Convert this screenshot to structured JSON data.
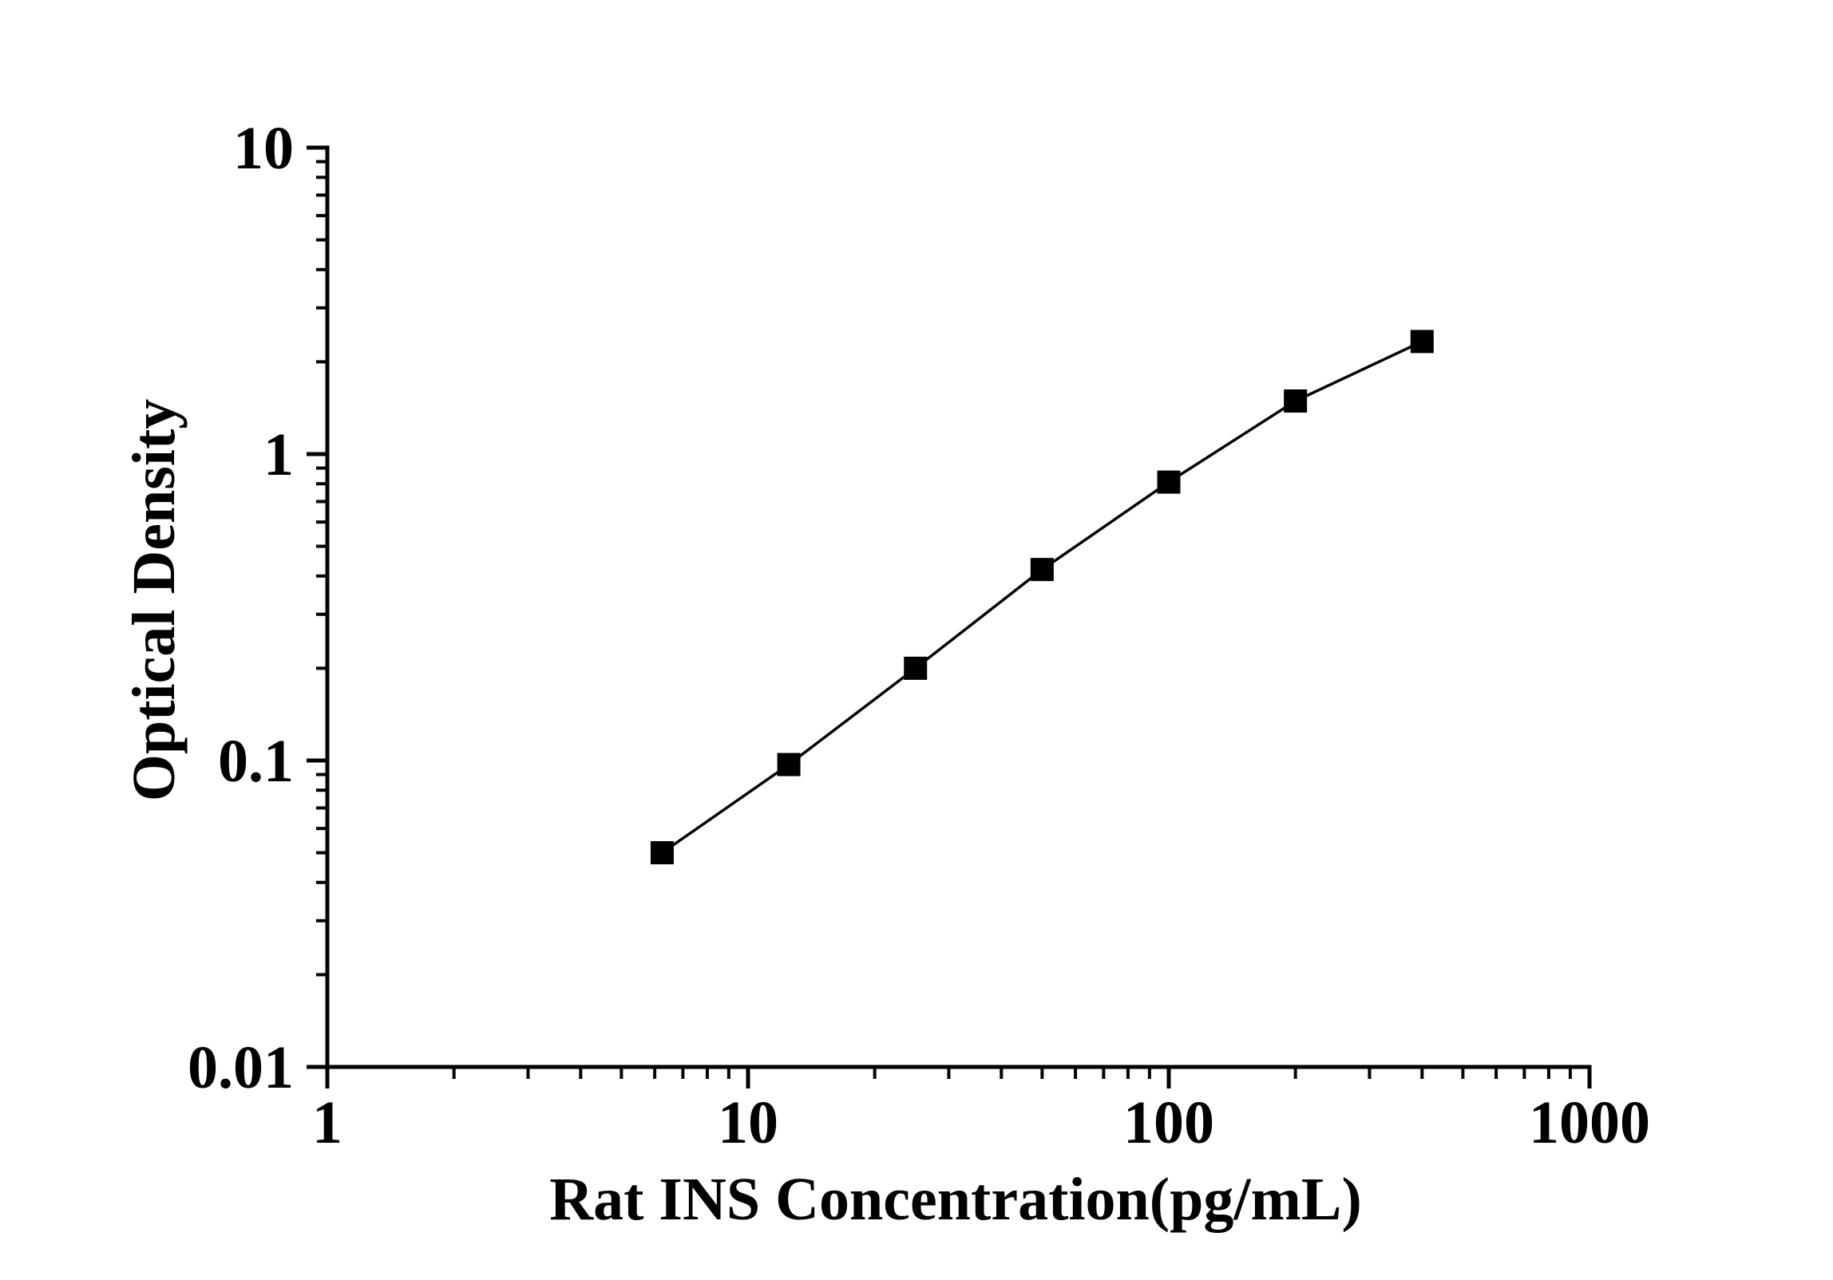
{
  "chart_data": {
    "type": "line",
    "title": "",
    "xlabel": "Rat INS Concentration(pg/mL)",
    "ylabel": "Optical Density",
    "x_scale": "log10",
    "y_scale": "log10",
    "xlim": [
      1,
      1000
    ],
    "ylim": [
      0.01,
      10
    ],
    "x_ticks": [
      1,
      10,
      100,
      1000
    ],
    "x_tick_labels": [
      "1",
      "10",
      "100",
      "1000"
    ],
    "y_ticks": [
      10,
      1,
      0.1,
      0.01
    ],
    "y_tick_labels": [
      "10",
      "1",
      "0.1",
      "0.01"
    ],
    "grid": false,
    "legend": false,
    "marker": "filled-square",
    "colors": {
      "line": "#000000",
      "marker": "#000000",
      "text": "#000000",
      "background": "#ffffff"
    },
    "x": [
      6.25,
      12.5,
      25,
      50,
      100,
      200,
      400
    ],
    "y": [
      0.05,
      0.097,
      0.2,
      0.42,
      0.81,
      1.49,
      2.33
    ]
  }
}
